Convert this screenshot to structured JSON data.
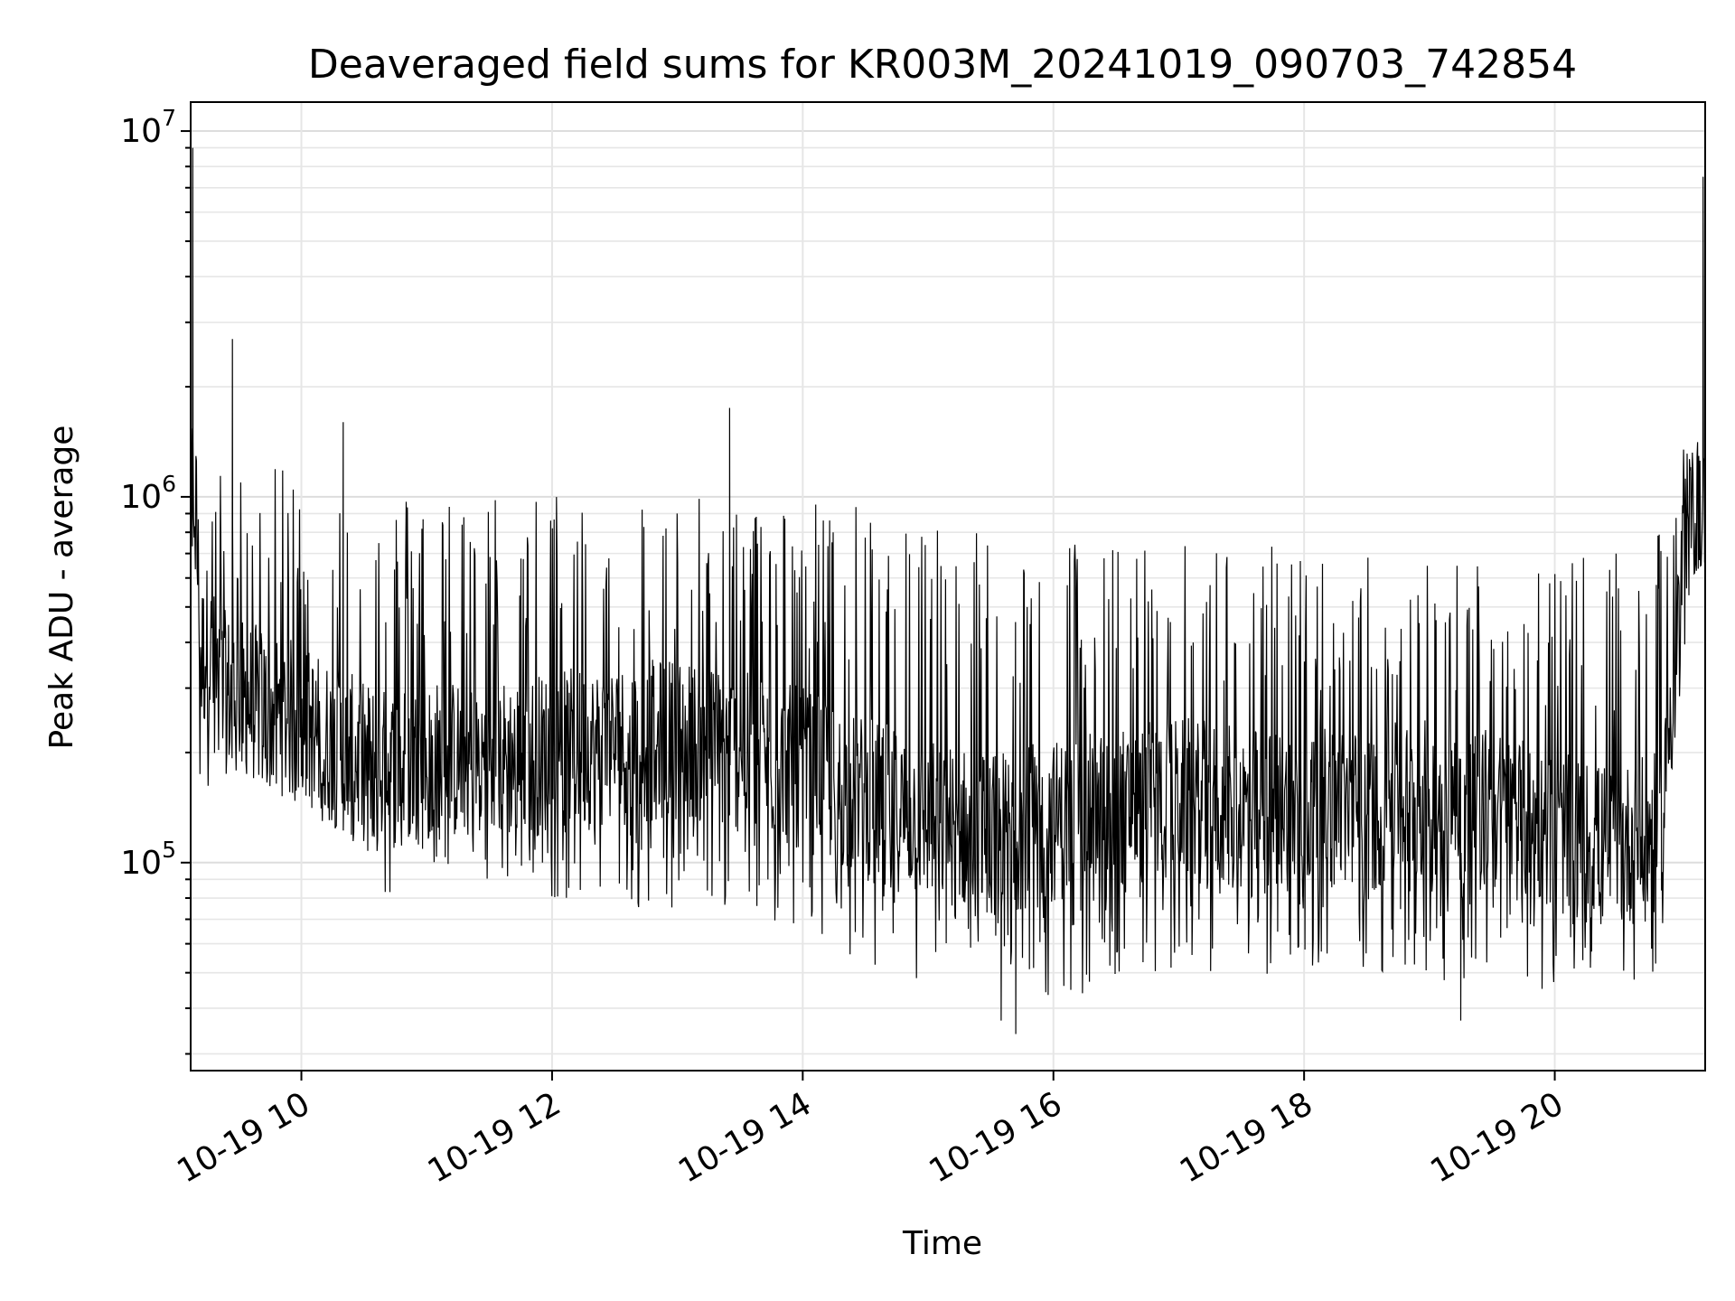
{
  "chart_data": {
    "type": "line",
    "title": "Deaveraged field sums for KR003M_20241019_090703_742854",
    "xlabel": "Time",
    "ylabel": "Peak ADU - average",
    "yscale": "log",
    "grid": true,
    "x_range": [
      "2024-10-19 09:07",
      "2024-10-19 21:12"
    ],
    "ylim": [
      27000,
      12000000
    ],
    "x_ticks": [
      {
        "value": "2024-10-19 10:00",
        "label": "10-19 10"
      },
      {
        "value": "2024-10-19 12:00",
        "label": "10-19 12"
      },
      {
        "value": "2024-10-19 14:00",
        "label": "10-19 14"
      },
      {
        "value": "2024-10-19 16:00",
        "label": "10-19 16"
      },
      {
        "value": "2024-10-19 18:00",
        "label": "10-19 18"
      },
      {
        "value": "2024-10-19 20:00",
        "label": "10-19 20"
      }
    ],
    "y_ticks": [
      {
        "value": 100000,
        "base": "10",
        "exp": "5"
      },
      {
        "value": 1000000,
        "base": "10",
        "exp": "6"
      },
      {
        "value": 10000000,
        "base": "10",
        "exp": "7"
      }
    ],
    "line_color": "#000000",
    "series": [
      {
        "x": [
          "2024-10-19 09:07",
          "2024-10-19 09:09",
          "2024-10-19 09:12",
          "2024-10-19 09:15",
          "2024-10-19 09:20",
          "2024-10-19 09:30",
          "2024-10-19 09:45",
          "2024-10-19 10:00",
          "2024-10-19 10:20",
          "2024-10-19 10:40",
          "2024-10-19 11:00",
          "2024-10-19 11:30",
          "2024-10-19 12:00",
          "2024-10-19 12:30",
          "2024-10-19 13:00",
          "2024-10-19 13:30",
          "2024-10-19 14:00",
          "2024-10-19 14:30",
          "2024-10-19 15:00",
          "2024-10-19 15:30",
          "2024-10-19 16:00",
          "2024-10-19 16:30",
          "2024-10-19 17:00",
          "2024-10-19 17:30",
          "2024-10-19 18:00",
          "2024-10-19 18:30",
          "2024-10-19 19:00",
          "2024-10-19 19:30",
          "2024-10-19 20:00",
          "2024-10-19 20:30",
          "2024-10-19 20:50",
          "2024-10-19 21:00",
          "2024-10-19 21:05",
          "2024-10-19 21:10",
          "2024-10-19 21:12"
        ],
        "low": [
          600000,
          500000,
          110000,
          150000,
          170000,
          180000,
          160000,
          140000,
          120000,
          80000,
          100000,
          90000,
          80000,
          75000,
          70000,
          65000,
          65000,
          50000,
          45000,
          40000,
          40000,
          45000,
          48000,
          50000,
          45000,
          50000,
          48000,
          45000,
          45000,
          45000,
          50000,
          250000,
          600000,
          650000,
          650000
        ],
        "typical": [
          900000,
          1100000,
          350000,
          400000,
          300000,
          280000,
          260000,
          240000,
          200000,
          180000,
          190000,
          190000,
          200000,
          210000,
          220000,
          200000,
          180000,
          150000,
          130000,
          120000,
          130000,
          140000,
          150000,
          140000,
          140000,
          140000,
          150000,
          140000,
          120000,
          110000,
          120000,
          500000,
          800000,
          900000,
          850000
        ],
        "high": [
          1500000,
          1800000,
          900000,
          1100000,
          1200000,
          1200000,
          1200000,
          1200000,
          1100000,
          1050000,
          1050000,
          1050000,
          1050000,
          1050000,
          1000000,
          1000000,
          1000000,
          950000,
          900000,
          850000,
          800000,
          750000,
          750000,
          750000,
          750000,
          700000,
          700000,
          700000,
          700000,
          700000,
          800000,
          1300000,
          1500000,
          1400000,
          1200000
        ],
        "spikes": [
          {
            "x": "2024-10-19 09:08",
            "y": 9000000
          },
          {
            "x": "2024-10-19 09:27",
            "y": 2700000
          },
          {
            "x": "2024-10-19 10:20",
            "y": 1600000
          },
          {
            "x": "2024-10-19 13:25",
            "y": 1750000
          },
          {
            "x": "2024-10-19 15:35",
            "y": 37000
          },
          {
            "x": "2024-10-19 15:42",
            "y": 34000
          },
          {
            "x": "2024-10-19 19:15",
            "y": 37000
          },
          {
            "x": "2024-10-19 21:11",
            "y": 7500000
          }
        ]
      }
    ]
  }
}
